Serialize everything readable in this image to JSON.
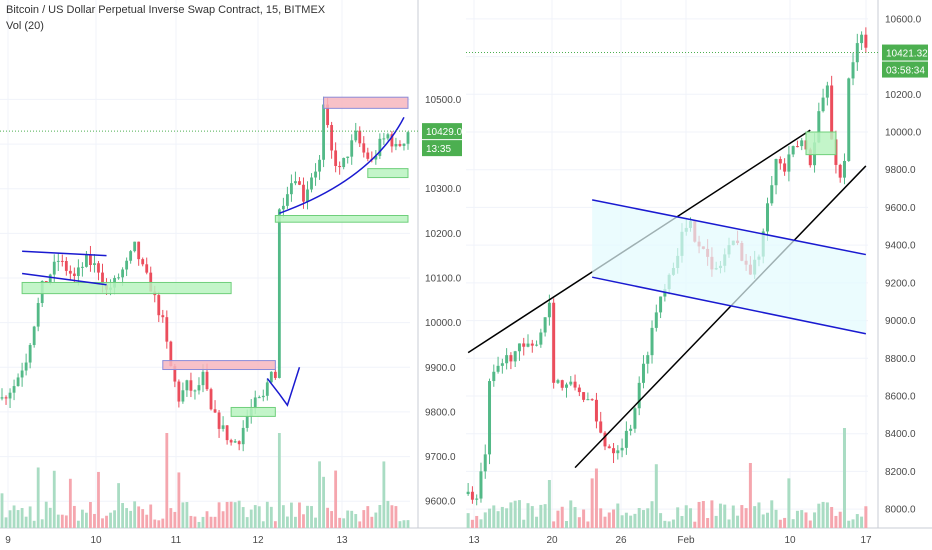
{
  "header": {
    "title": "Bitcoin / US Dollar Perpetual Inverse Swap Contract, 15, BITMEX",
    "indicator": "Vol (20)"
  },
  "colors": {
    "up": "#53b987",
    "down": "#eb4d5c",
    "up_vol": "#a9dcc3",
    "down_vol": "#f5a6ae",
    "price_tag": "#4caf50",
    "rect_red_fill": "#f7b6be",
    "rect_green_fill": "#b9f3c0",
    "channel_fill": "#e3fbfd",
    "channel_line": "#1a1ad0",
    "trend_black": "#000000",
    "grid": "#f0f3fa"
  },
  "chart_data": [
    {
      "type": "candlestick",
      "panel": "left",
      "title": "Bitcoin / US Dollar Perpetual Inverse Swap Contract, 15, BITMEX",
      "ylim": [
        9540,
        10660
      ],
      "y_ticks": [
        "10500.0",
        "10400.0",
        "10300.0",
        "10200.0",
        "10100.0",
        "10000.0",
        "9900.0",
        "9800.0",
        "9700.0",
        "9600.0"
      ],
      "x_ticks": [
        "9",
        "10",
        "11",
        "12",
        "13"
      ],
      "last_price": "10429.0",
      "countdown": "13:35",
      "series": [
        {
          "name": "price",
          "waypoints": [
            [
              0,
              9830
            ],
            [
              3,
              9860
            ],
            [
              6,
              9920
            ],
            [
              8,
              10000
            ],
            [
              10,
              10080
            ],
            [
              12,
              10110
            ],
            [
              14,
              10140
            ],
            [
              16,
              10120
            ],
            [
              18,
              10100
            ],
            [
              21,
              10140
            ],
            [
              24,
              10120
            ],
            [
              26,
              10070
            ],
            [
              28,
              10090
            ],
            [
              31,
              10130
            ],
            [
              33,
              10170
            ],
            [
              35,
              10120
            ],
            [
              37,
              10080
            ],
            [
              40,
              10000
            ],
            [
              42,
              9900
            ],
            [
              44,
              9830
            ],
            [
              46,
              9860
            ],
            [
              48,
              9840
            ],
            [
              50,
              9880
            ],
            [
              52,
              9800
            ],
            [
              55,
              9760
            ],
            [
              57,
              9730
            ],
            [
              59,
              9740
            ],
            [
              61,
              9790
            ],
            [
              63,
              9820
            ],
            [
              65,
              9830
            ],
            [
              67,
              9900
            ],
            [
              68,
              9880
            ],
            [
              69,
              10250
            ],
            [
              71,
              10300
            ],
            [
              73,
              10330
            ],
            [
              75,
              10280
            ],
            [
              77,
              10330
            ],
            [
              79,
              10360
            ],
            [
              80,
              10480
            ],
            [
              82,
              10380
            ],
            [
              84,
              10340
            ],
            [
              86,
              10380
            ],
            [
              88,
              10420
            ],
            [
              90,
              10380
            ],
            [
              92,
              10360
            ],
            [
              94,
              10400
            ],
            [
              96,
              10420
            ],
            [
              98,
              10390
            ],
            [
              100,
              10410
            ],
            [
              101,
              10430
            ]
          ]
        }
      ],
      "annotations": [
        {
          "kind": "rect",
          "color": "red",
          "from": [
            80,
            10505
          ],
          "to": [
            101,
            10480
          ]
        },
        {
          "kind": "rect",
          "color": "red",
          "from": [
            40,
            9915
          ],
          "to": [
            68,
            9895
          ]
        },
        {
          "kind": "rect",
          "color": "green",
          "from": [
            5,
            10090
          ],
          "to": [
            57,
            10065
          ]
        },
        {
          "kind": "rect",
          "color": "green",
          "from": [
            91,
            10345
          ],
          "to": [
            101,
            10325
          ]
        },
        {
          "kind": "rect",
          "color": "green",
          "from": [
            68,
            10240
          ],
          "to": [
            101,
            10225
          ]
        },
        {
          "kind": "rect",
          "color": "green",
          "from": [
            57,
            9810
          ],
          "to": [
            68,
            9790
          ]
        }
      ]
    },
    {
      "type": "candlestick",
      "panel": "right",
      "ylim": [
        7900,
        10700
      ],
      "y_ticks": [
        "10600.0",
        "10400.0",
        "10200.0",
        "10000.0",
        "9800.0",
        "9600.0",
        "9400.0",
        "9200.0",
        "9000.0",
        "8800.0",
        "8600.0",
        "8400.0",
        "8200.0",
        "8000.0"
      ],
      "x_ticks": [
        "13",
        "20",
        "26",
        "Feb",
        "10",
        "17"
      ],
      "last_price": "10421.32",
      "countdown": "03:58:34",
      "series": [
        {
          "name": "price",
          "waypoints": [
            [
              0,
              8080
            ],
            [
              2,
              8050
            ],
            [
              4,
              8300
            ],
            [
              5,
              8650
            ],
            [
              7,
              8750
            ],
            [
              9,
              8800
            ],
            [
              12,
              8850
            ],
            [
              15,
              8850
            ],
            [
              17,
              8950
            ],
            [
              19,
              9100
            ],
            [
              20,
              8700
            ],
            [
              22,
              8650
            ],
            [
              25,
              8650
            ],
            [
              27,
              8600
            ],
            [
              29,
              8550
            ],
            [
              30,
              8450
            ],
            [
              32,
              8350
            ],
            [
              34,
              8320
            ],
            [
              36,
              8350
            ],
            [
              38,
              8450
            ],
            [
              40,
              8650
            ],
            [
              42,
              8850
            ],
            [
              44,
              9050
            ],
            [
              46,
              9200
            ],
            [
              48,
              9300
            ],
            [
              50,
              9450
            ],
            [
              52,
              9500
            ],
            [
              53,
              9450
            ],
            [
              55,
              9400
            ],
            [
              57,
              9250
            ],
            [
              59,
              9300
            ],
            [
              61,
              9400
            ],
            [
              63,
              9400
            ],
            [
              65,
              9300
            ],
            [
              66,
              9250
            ],
            [
              68,
              9350
            ],
            [
              70,
              9650
            ],
            [
              72,
              9850
            ],
            [
              74,
              9800
            ],
            [
              76,
              9900
            ],
            [
              78,
              9950
            ],
            [
              80,
              9850
            ],
            [
              82,
              10100
            ],
            [
              84,
              10250
            ],
            [
              85,
              9950
            ],
            [
              86,
              9850
            ],
            [
              87,
              9750
            ],
            [
              88,
              9850
            ],
            [
              89,
              10300
            ],
            [
              91,
              10450
            ],
            [
              92,
              10500
            ],
            [
              93,
              10430
            ]
          ]
        }
      ],
      "annotations": [
        {
          "kind": "trendline",
          "from": [
            0,
            8830
          ],
          "to": [
            80,
            10010
          ]
        },
        {
          "kind": "trendline",
          "from": [
            25,
            8220
          ],
          "to": [
            93,
            9820
          ]
        },
        {
          "kind": "channel",
          "upper": [
            [
              29,
              9640
            ],
            [
              93,
              9350
            ]
          ],
          "lower": [
            [
              29,
              9230
            ],
            [
              93,
              8930
            ]
          ]
        },
        {
          "kind": "rect",
          "color": "green",
          "from": [
            79,
            10000
          ],
          "to": [
            86,
            9880
          ]
        }
      ]
    }
  ]
}
